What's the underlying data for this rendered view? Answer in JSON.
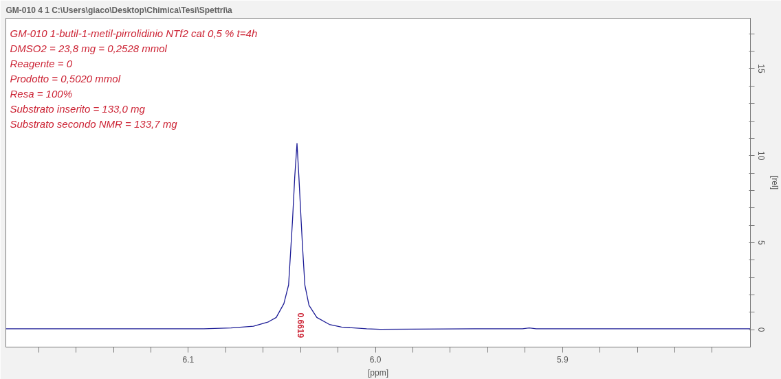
{
  "chart_data": {
    "type": "line",
    "title": "GM-010  4  1  C:\\Users\\giaco\\Desktop\\Chimica\\Tesi\\Spettri\\a",
    "xlabel": "[ppm]",
    "ylabel": "[rel]",
    "x": [
      6.1975,
      6.0917,
      6.0772,
      6.0652,
      6.0572,
      6.053,
      6.0489,
      6.0464,
      6.0453,
      6.0443,
      6.0431,
      6.0419,
      6.0409,
      6.0397,
      6.0388,
      6.0377,
      6.0355,
      6.0313,
      6.0246,
      6.0181,
      6.0047,
      5.9975,
      5.9467,
      5.9214,
      5.9178,
      5.9141,
      5.7996
    ],
    "series": [
      {
        "color": "#1c1c96",
        "values": [
          0.05,
          0.05,
          0.1,
          0.2,
          0.45,
          0.7,
          1.5,
          2.57,
          4.5,
          6.28,
          8.8,
          10.7,
          8.8,
          6.28,
          4.5,
          2.57,
          1.4,
          0.7,
          0.3,
          0.15,
          0.05,
          0.02,
          0.05,
          0.05,
          0.1,
          0.05,
          0.05
        ]
      }
    ],
    "xlim": [
      6.1975,
      5.7996
    ],
    "ylim": [
      -1.0,
      17.9
    ],
    "xticks": [
      {
        "value": 6.18,
        "label": null
      },
      {
        "value": 6.16,
        "label": null
      },
      {
        "value": 6.14,
        "label": null
      },
      {
        "value": 6.12,
        "label": null
      },
      {
        "value": 6.1,
        "label": "6.1"
      },
      {
        "value": 6.08,
        "label": null
      },
      {
        "value": 6.06,
        "label": null
      },
      {
        "value": 6.04,
        "label": null
      },
      {
        "value": 6.02,
        "label": null
      },
      {
        "value": 6.0,
        "label": "6.0"
      },
      {
        "value": 5.98,
        "label": null
      },
      {
        "value": 5.96,
        "label": null
      },
      {
        "value": 5.94,
        "label": null
      },
      {
        "value": 5.92,
        "label": null
      },
      {
        "value": 5.9,
        "label": "5.9"
      },
      {
        "value": 5.88,
        "label": null
      },
      {
        "value": 5.86,
        "label": null
      },
      {
        "value": 5.84,
        "label": null
      },
      {
        "value": 5.82,
        "label": null
      }
    ],
    "yticks": [
      0,
      {
        "value": 1,
        "label": null
      },
      {
        "value": 2,
        "label": null
      },
      {
        "value": 3,
        "label": null
      },
      {
        "value": 4,
        "label": null
      },
      5,
      {
        "value": 6,
        "label": null
      },
      {
        "value": 7,
        "label": null
      },
      {
        "value": 8,
        "label": null
      },
      {
        "value": 9,
        "label": null
      },
      10,
      {
        "value": 11,
        "label": null
      },
      {
        "value": 12,
        "label": null
      },
      {
        "value": 13,
        "label": null
      },
      {
        "value": 14,
        "label": null
      },
      15,
      {
        "value": 16,
        "label": null
      },
      {
        "value": 17,
        "label": null
      }
    ],
    "annotations": [
      "GM-010 1-butil-1-metil-pirrolidinio NTf2  cat 0,5 % t=4h",
      "DMSO2 = 23,8 mg = 0,2528 mmol",
      "Reagente = 0",
      "Prodotto = 0,5020 mmol",
      "Resa = 100%",
      "Substrato inserito = 133,0 mg",
      "Substrato secondo NMR = 133,7 mg",
      "0.6619"
    ],
    "grid": false,
    "marker": "none",
    "line_style": "solid"
  }
}
